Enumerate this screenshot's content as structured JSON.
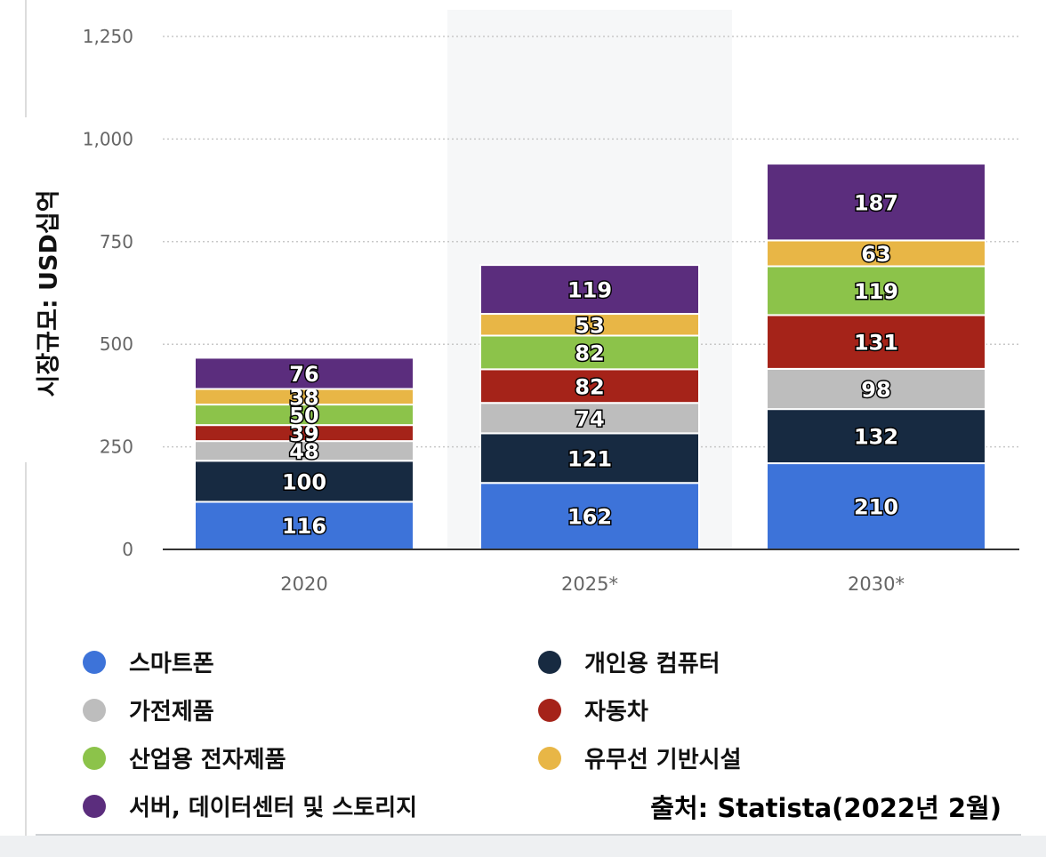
{
  "chart_data": {
    "type": "bar",
    "stacked": true,
    "categories": [
      "2020",
      "2025*",
      "2030*"
    ],
    "series": [
      {
        "name": "스마트폰",
        "color": "#3d73d9",
        "values": [
          116,
          162,
          210
        ]
      },
      {
        "name": "개인용 컴퓨터",
        "color": "#172a41",
        "values": [
          100,
          121,
          132
        ]
      },
      {
        "name": "가전제품",
        "color": "#bdbdbd",
        "values": [
          48,
          74,
          98
        ]
      },
      {
        "name": "자동차",
        "color": "#a52319",
        "values": [
          39,
          82,
          131
        ]
      },
      {
        "name": "산업용 전자제품",
        "color": "#8cc34a",
        "values": [
          50,
          82,
          119
        ]
      },
      {
        "name": "유무선 기반시설",
        "color": "#e8b646",
        "values": [
          38,
          53,
          63
        ]
      },
      {
        "name": "서버, 데이터센터 및 스토리지",
        "color": "#5b2d7d",
        "values": [
          76,
          119,
          187
        ]
      }
    ],
    "yticks": [
      "0",
      "250",
      "500",
      "750",
      "1,000",
      "1,250"
    ],
    "ylim": [
      0,
      1250
    ],
    "ylabel": "시장규모: USD십억",
    "xlabel": "",
    "grid": true,
    "legend_position": "bottom"
  },
  "source": "출처: Statista(2022년 2월)"
}
